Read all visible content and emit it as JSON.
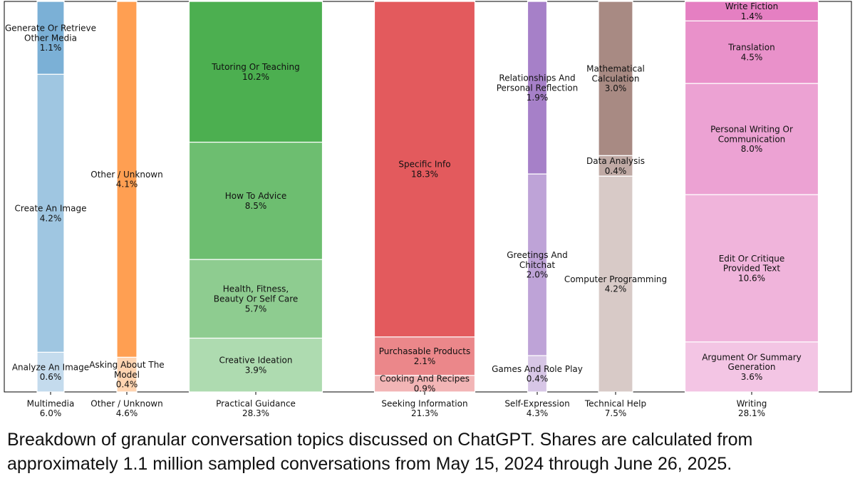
{
  "caption": "Breakdown of granular conversation topics discussed on ChatGPT. Shares are calculated from approximately 1.1 million sampled conversations from May 15, 2024 through June 26, 2025.",
  "chart_data": {
    "type": "bar",
    "stacked": true,
    "normalized_per_column": true,
    "grid": false,
    "categories": [
      {
        "label": "Multimedia",
        "share": "6.0%",
        "color": "#7bb0d6",
        "segments": [
          {
            "label": "Analyze An Image",
            "pct": 0.6
          },
          {
            "label": "Create An Image",
            "pct": 4.2
          },
          {
            "label": "Generate Or Retrieve Other Media",
            "pct": 1.1
          }
        ]
      },
      {
        "label": "Other / Unknown",
        "share": "4.6%",
        "color": "#ff9f52",
        "segments": [
          {
            "label": "Asking About The Model",
            "pct": 0.4
          },
          {
            "label": "Other / Unknown",
            "pct": 4.1
          }
        ]
      },
      {
        "label": "Practical Guidance",
        "share": "28.3%",
        "color": "#4caf50",
        "segments": [
          {
            "label": "Creative Ideation",
            "pct": 3.9
          },
          {
            "label": "Health, Fitness, Beauty Or Self Care",
            "pct": 5.7
          },
          {
            "label": "How To Advice",
            "pct": 8.5
          },
          {
            "label": "Tutoring Or Teaching",
            "pct": 10.2
          }
        ]
      },
      {
        "label": "Seeking Information",
        "share": "21.3%",
        "color": "#e35a5d",
        "segments": [
          {
            "label": "Cooking And Recipes",
            "pct": 0.9
          },
          {
            "label": "Purchasable Products",
            "pct": 2.1
          },
          {
            "label": "Specific Info",
            "pct": 18.3
          }
        ]
      },
      {
        "label": "Self-Expression",
        "share": "4.3%",
        "color": "#a680c8",
        "segments": [
          {
            "label": "Games And Role Play",
            "pct": 0.4
          },
          {
            "label": "Greetings And Chitchat",
            "pct": 2.0
          },
          {
            "label": "Relationships And Personal Reflection",
            "pct": 1.9
          }
        ]
      },
      {
        "label": "Technical Help",
        "share": "7.5%",
        "color": "#a88a83",
        "segments": [
          {
            "label": "Computer Programming",
            "pct": 4.2
          },
          {
            "label": "Data Analysis",
            "pct": 0.4
          },
          {
            "label": "Mathematical Calculation",
            "pct": 3.0
          }
        ]
      },
      {
        "label": "Writing",
        "share": "28.1%",
        "color": "#e57fc2",
        "segments": [
          {
            "label": "Argument Or Summary Generation",
            "pct": 3.6
          },
          {
            "label": "Edit Or Critique Provided Text",
            "pct": 10.6
          },
          {
            "label": "Personal Writing Or Communication",
            "pct": 8.0
          },
          {
            "label": "Translation",
            "pct": 4.5
          },
          {
            "label": "Write Fiction",
            "pct": 1.4
          }
        ]
      }
    ]
  }
}
